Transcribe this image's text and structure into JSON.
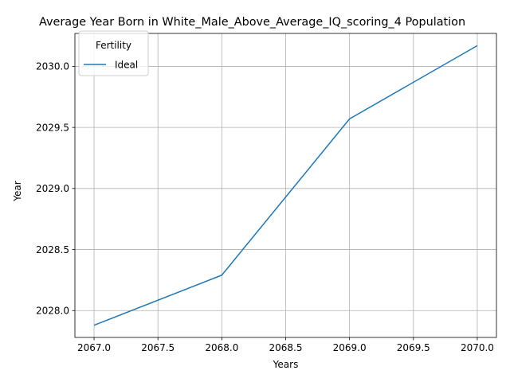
{
  "chart_data": {
    "type": "line",
    "title": "Average Year Born in White_Male_Above_Average_IQ_scoring_4 Population",
    "xlabel": "Years",
    "ylabel": "Year",
    "x": [
      2067,
      2068,
      2069,
      2070
    ],
    "series": [
      {
        "name": "Ideal",
        "color": "#1f77b4",
        "values": [
          2027.88,
          2028.29,
          2029.57,
          2030.17
        ]
      }
    ],
    "xlim": [
      2066.85,
      2070.15
    ],
    "ylim": [
      2027.78,
      2030.27
    ],
    "xticks": [
      2067.0,
      2067.5,
      2068.0,
      2068.5,
      2069.0,
      2069.5,
      2070.0
    ],
    "yticks": [
      2028.0,
      2028.5,
      2029.0,
      2029.5,
      2030.0
    ],
    "xtick_labels": [
      "2067.0",
      "2067.5",
      "2068.0",
      "2068.5",
      "2069.0",
      "2069.5",
      "2070.0"
    ],
    "ytick_labels": [
      "2028.0",
      "2028.5",
      "2029.0",
      "2029.5",
      "2030.0"
    ],
    "grid": true,
    "legend": {
      "title": "Fertility",
      "position": "upper-left"
    }
  }
}
